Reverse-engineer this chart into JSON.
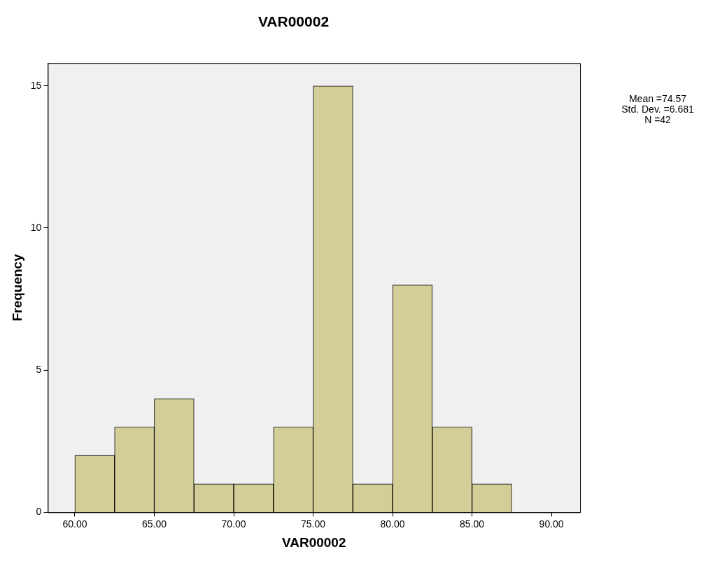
{
  "chart_data": {
    "type": "histogram",
    "title": "VAR00002",
    "xlabel": "VAR00002",
    "ylabel": "Frequency",
    "bins": [
      60,
      62.5,
      65,
      67.5,
      70,
      72.5,
      75,
      77.5,
      80,
      82.5,
      85,
      87.5
    ],
    "values": [
      2,
      3,
      4,
      1,
      1,
      3,
      15,
      1,
      8,
      3,
      1
    ],
    "color": "#d3ce97",
    "xlim": [
      58.3,
      91.8
    ],
    "xticks": [
      {
        "value": 60,
        "label": "60.00"
      },
      {
        "value": 65,
        "label": "65.00"
      },
      {
        "value": 70,
        "label": "70.00"
      },
      {
        "value": 75,
        "label": "75.00"
      },
      {
        "value": 80,
        "label": "80.00"
      },
      {
        "value": 85,
        "label": "85.00"
      },
      {
        "value": 90,
        "label": "90.00"
      }
    ],
    "ylim": [
      0,
      15.8
    ],
    "yticks": [
      0,
      5,
      10,
      15
    ],
    "grid": false,
    "legend": false,
    "annotations": [
      "Mean =74.57",
      "Std. Dev. =6.681",
      "N =42"
    ]
  }
}
